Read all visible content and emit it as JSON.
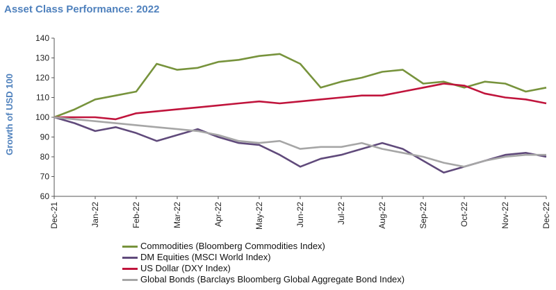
{
  "title": "Asset Class Performance: 2022",
  "chart_data": {
    "type": "line",
    "ylabel": "Growth of USD 100",
    "ylim": [
      60,
      140
    ],
    "yticks": [
      60,
      70,
      80,
      90,
      100,
      110,
      120,
      130,
      140
    ],
    "xticks": [
      "Dec-21",
      "Jan-22",
      "Feb-22",
      "Mar-22",
      "Apr-22",
      "May-22",
      "Jun-22",
      "Jul-22",
      "Aug-22",
      "Sep-22",
      "Oct-22",
      "Nov-22",
      "Dec-22"
    ],
    "grid": false,
    "legend_position": "bottom",
    "x": [
      "Dec-21",
      "mid Dec-21",
      "Jan-22",
      "mid Jan-22",
      "Feb-22",
      "mid Feb-22",
      "Mar-22",
      "mid Mar-22",
      "Apr-22",
      "mid Apr-22",
      "May-22",
      "mid May-22",
      "Jun-22",
      "mid Jun-22",
      "Jul-22",
      "mid Jul-22",
      "Aug-22",
      "mid Aug-22",
      "Sep-22",
      "mid Sep-22",
      "Oct-22",
      "mid Oct-22",
      "Nov-22",
      "mid Nov-22",
      "Dec-22"
    ],
    "series": [
      {
        "name": "Commodities (Bloomberg Commodities Index)",
        "color": "#77933c",
        "values": [
          100,
          104,
          109,
          111,
          113,
          127,
          124,
          125,
          128,
          129,
          131,
          132,
          127,
          115,
          118,
          120,
          123,
          124,
          117,
          118,
          115,
          118,
          117,
          113,
          115
        ]
      },
      {
        "name": "DM Equities (MSCI World Index)",
        "color": "#604a7b",
        "values": [
          100,
          97,
          93,
          95,
          92,
          88,
          91,
          94,
          90,
          87,
          86,
          81,
          75,
          79,
          81,
          84,
          87,
          84,
          78,
          72,
          75,
          78,
          81,
          82,
          80
        ]
      },
      {
        "name": "US Dollar (DXY Index)",
        "color": "#c0143c",
        "values": [
          100,
          100,
          100,
          99,
          102,
          103,
          104,
          105,
          106,
          107,
          108,
          107,
          108,
          109,
          110,
          111,
          111,
          113,
          115,
          117,
          116,
          112,
          110,
          109,
          107
        ]
      },
      {
        "name": "Global Bonds (Barclays Bloomberg Global Aggregate Bond Index)",
        "color": "#a6a6a6",
        "values": [
          100,
          99,
          98,
          97,
          96,
          95,
          94,
          93,
          91,
          88,
          87,
          88,
          84,
          85,
          85,
          87,
          84,
          82,
          80,
          77,
          75,
          78,
          80,
          81,
          81
        ]
      }
    ]
  }
}
